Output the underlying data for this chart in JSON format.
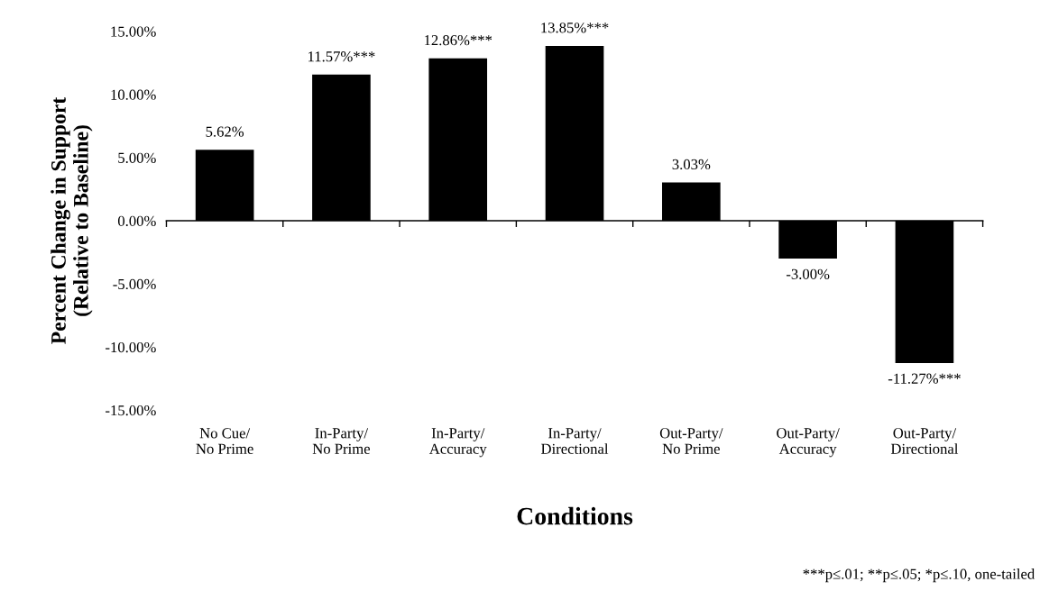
{
  "chart_data": {
    "type": "bar",
    "categories": [
      "No Cue/\nNo Prime",
      "In-Party/\nNo Prime",
      "In-Party/\nAccuracy",
      "In-Party/\nDirectional",
      "Out-Party/\nNo Prime",
      "Out-Party/\nAccuracy",
      "Out-Party/\nDirectional"
    ],
    "values": [
      5.62,
      11.57,
      12.86,
      13.85,
      3.03,
      -3.0,
      -11.27
    ],
    "value_labels": [
      "5.62%",
      "11.57%***",
      "12.86%***",
      "13.85%***",
      "3.03%",
      "-3.00%",
      "-11.27%***"
    ],
    "color": "#000000",
    "xlabel": "Conditions",
    "ylabel": "Percent Change in Support\n(Relative to Baseline)",
    "ylim": [
      -15,
      15
    ],
    "yticks": [
      {
        "value": -15,
        "label": "-15.00%"
      },
      {
        "value": -10,
        "label": "-10.00%"
      },
      {
        "value": -5,
        "label": "-5.00%"
      },
      {
        "value": 0,
        "label": "0.00%"
      },
      {
        "value": 5,
        "label": "5.00%"
      },
      {
        "value": 10,
        "label": "10.00%"
      },
      {
        "value": 15,
        "label": "15.00%"
      }
    ],
    "legend": false,
    "annotations": [
      "***p≤.01; **p≤.05; *p≤.10, one-tailed"
    ]
  }
}
